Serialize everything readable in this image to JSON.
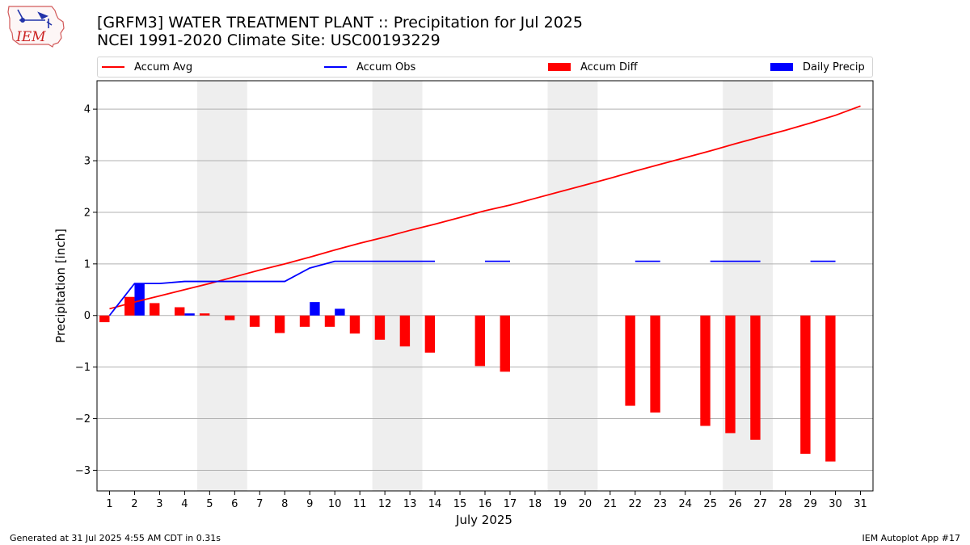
{
  "header": {
    "title": "[GRFM3] WATER TREATMENT PLANT :: Precipitation for Jul 2025",
    "subtitle": "NCEI 1991-2020 Climate Site: USC00193229"
  },
  "logo": {
    "text": "IEM",
    "color": "#cc2222"
  },
  "footer": {
    "left": "Generated at 31 Jul 2025 4:55 AM CDT in 0.31s",
    "right": "IEM Autoplot App #17"
  },
  "legend": {
    "accum_avg": "Accum Avg",
    "accum_obs": "Accum Obs",
    "accum_diff": "Accum Diff",
    "daily_precip": "Daily Precip"
  },
  "colors": {
    "accum_avg": "#ff0000",
    "accum_obs": "#0000ff",
    "accum_diff": "#ff0000",
    "daily_precip": "#0000ff",
    "weekend_shade": "#eeeeee",
    "grid": "#b0b0b0"
  },
  "chart_data": {
    "type": "bar",
    "xlabel": "July 2025",
    "ylabel": "Precipitation [inch]",
    "xlim": [
      0.5,
      31.5
    ],
    "ylim": [
      -3.4,
      4.55
    ],
    "yticks": [
      -3,
      -2,
      -1,
      0,
      1,
      2,
      3,
      4
    ],
    "xticks": [
      1,
      2,
      3,
      4,
      5,
      6,
      7,
      8,
      9,
      10,
      11,
      12,
      13,
      14,
      15,
      16,
      17,
      18,
      19,
      20,
      21,
      22,
      23,
      24,
      25,
      26,
      27,
      28,
      29,
      30,
      31
    ],
    "grid": "y",
    "legend_position": "top",
    "weekend_shading": [
      [
        4.5,
        6.5
      ],
      [
        11.5,
        13.5
      ],
      [
        18.5,
        20.5
      ],
      [
        25.5,
        27.5
      ]
    ],
    "series": [
      {
        "name": "Accum Avg",
        "kind": "line",
        "x": [
          1,
          2,
          3,
          4,
          5,
          6,
          7,
          8,
          9,
          10,
          11,
          12,
          13,
          14,
          15,
          16,
          17,
          18,
          19,
          20,
          21,
          22,
          23,
          24,
          25,
          26,
          27,
          28,
          29,
          30,
          31
        ],
        "values": [
          0.13,
          0.26,
          0.38,
          0.5,
          0.62,
          0.75,
          0.88,
          1.0,
          1.13,
          1.27,
          1.4,
          1.52,
          1.65,
          1.77,
          1.9,
          2.03,
          2.14,
          2.27,
          2.4,
          2.53,
          2.66,
          2.8,
          2.93,
          3.06,
          3.19,
          3.33,
          3.46,
          3.59,
          3.73,
          3.88,
          4.06
        ]
      },
      {
        "name": "Accum Obs",
        "kind": "line",
        "segments": [
          {
            "x": [
              1,
              2,
              3,
              4,
              5,
              6,
              7,
              8,
              9,
              10,
              11,
              12,
              13,
              14
            ],
            "values": [
              0.0,
              0.62,
              0.62,
              0.66,
              0.66,
              0.66,
              0.66,
              0.66,
              0.92,
              1.05,
              1.05,
              1.05,
              1.05,
              1.05
            ]
          },
          {
            "x": [
              16,
              17
            ],
            "values": [
              1.05,
              1.05
            ]
          },
          {
            "x": [
              22,
              23
            ],
            "values": [
              1.05,
              1.05
            ]
          },
          {
            "x": [
              25,
              26,
              27
            ],
            "values": [
              1.05,
              1.05,
              1.05
            ]
          },
          {
            "x": [
              29,
              30
            ],
            "values": [
              1.05,
              1.05
            ]
          }
        ]
      },
      {
        "name": "Accum Diff",
        "kind": "bar",
        "offset": -0.2,
        "x": [
          1,
          2,
          3,
          4,
          5,
          6,
          7,
          8,
          9,
          10,
          11,
          12,
          13,
          14,
          16,
          17,
          22,
          23,
          25,
          26,
          27,
          29,
          30
        ],
        "values": [
          -0.13,
          0.36,
          0.24,
          0.16,
          0.04,
          -0.09,
          -0.22,
          -0.34,
          -0.22,
          -0.22,
          -0.35,
          -0.47,
          -0.6,
          -0.72,
          -0.98,
          -1.09,
          -1.75,
          -1.88,
          -2.14,
          -2.28,
          -2.41,
          -2.68,
          -2.83
        ]
      },
      {
        "name": "Daily Precip",
        "kind": "bar",
        "offset": 0.2,
        "x": [
          2,
          4,
          9,
          10
        ],
        "values": [
          0.62,
          0.04,
          0.26,
          0.13
        ]
      }
    ]
  }
}
